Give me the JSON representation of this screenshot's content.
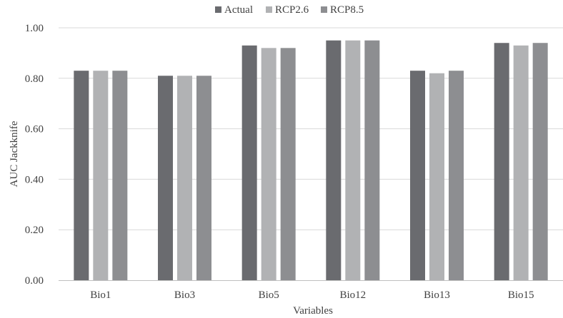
{
  "chart_data": {
    "type": "bar",
    "title": "",
    "xlabel": "Variables",
    "ylabel": "AUC Jackknife",
    "ylim": [
      0,
      1
    ],
    "yticks": [
      "0.00",
      "0.20",
      "0.40",
      "0.60",
      "0.80",
      "1.00"
    ],
    "grid": true,
    "legend_position": "top",
    "categories": [
      "Bio1",
      "Bio3",
      "Bio5",
      "Bio12",
      "Bio13",
      "Bio15"
    ],
    "series": [
      {
        "name": "Actual",
        "color": "#6a6b6f",
        "values": [
          0.83,
          0.81,
          0.93,
          0.95,
          0.83,
          0.94
        ]
      },
      {
        "name": "RCP2.6",
        "color": "#b1b2b4",
        "values": [
          0.83,
          0.81,
          0.92,
          0.95,
          0.82,
          0.93
        ]
      },
      {
        "name": "RCP8.5",
        "color": "#8d8e91",
        "values": [
          0.83,
          0.81,
          0.92,
          0.95,
          0.83,
          0.94
        ]
      }
    ]
  }
}
